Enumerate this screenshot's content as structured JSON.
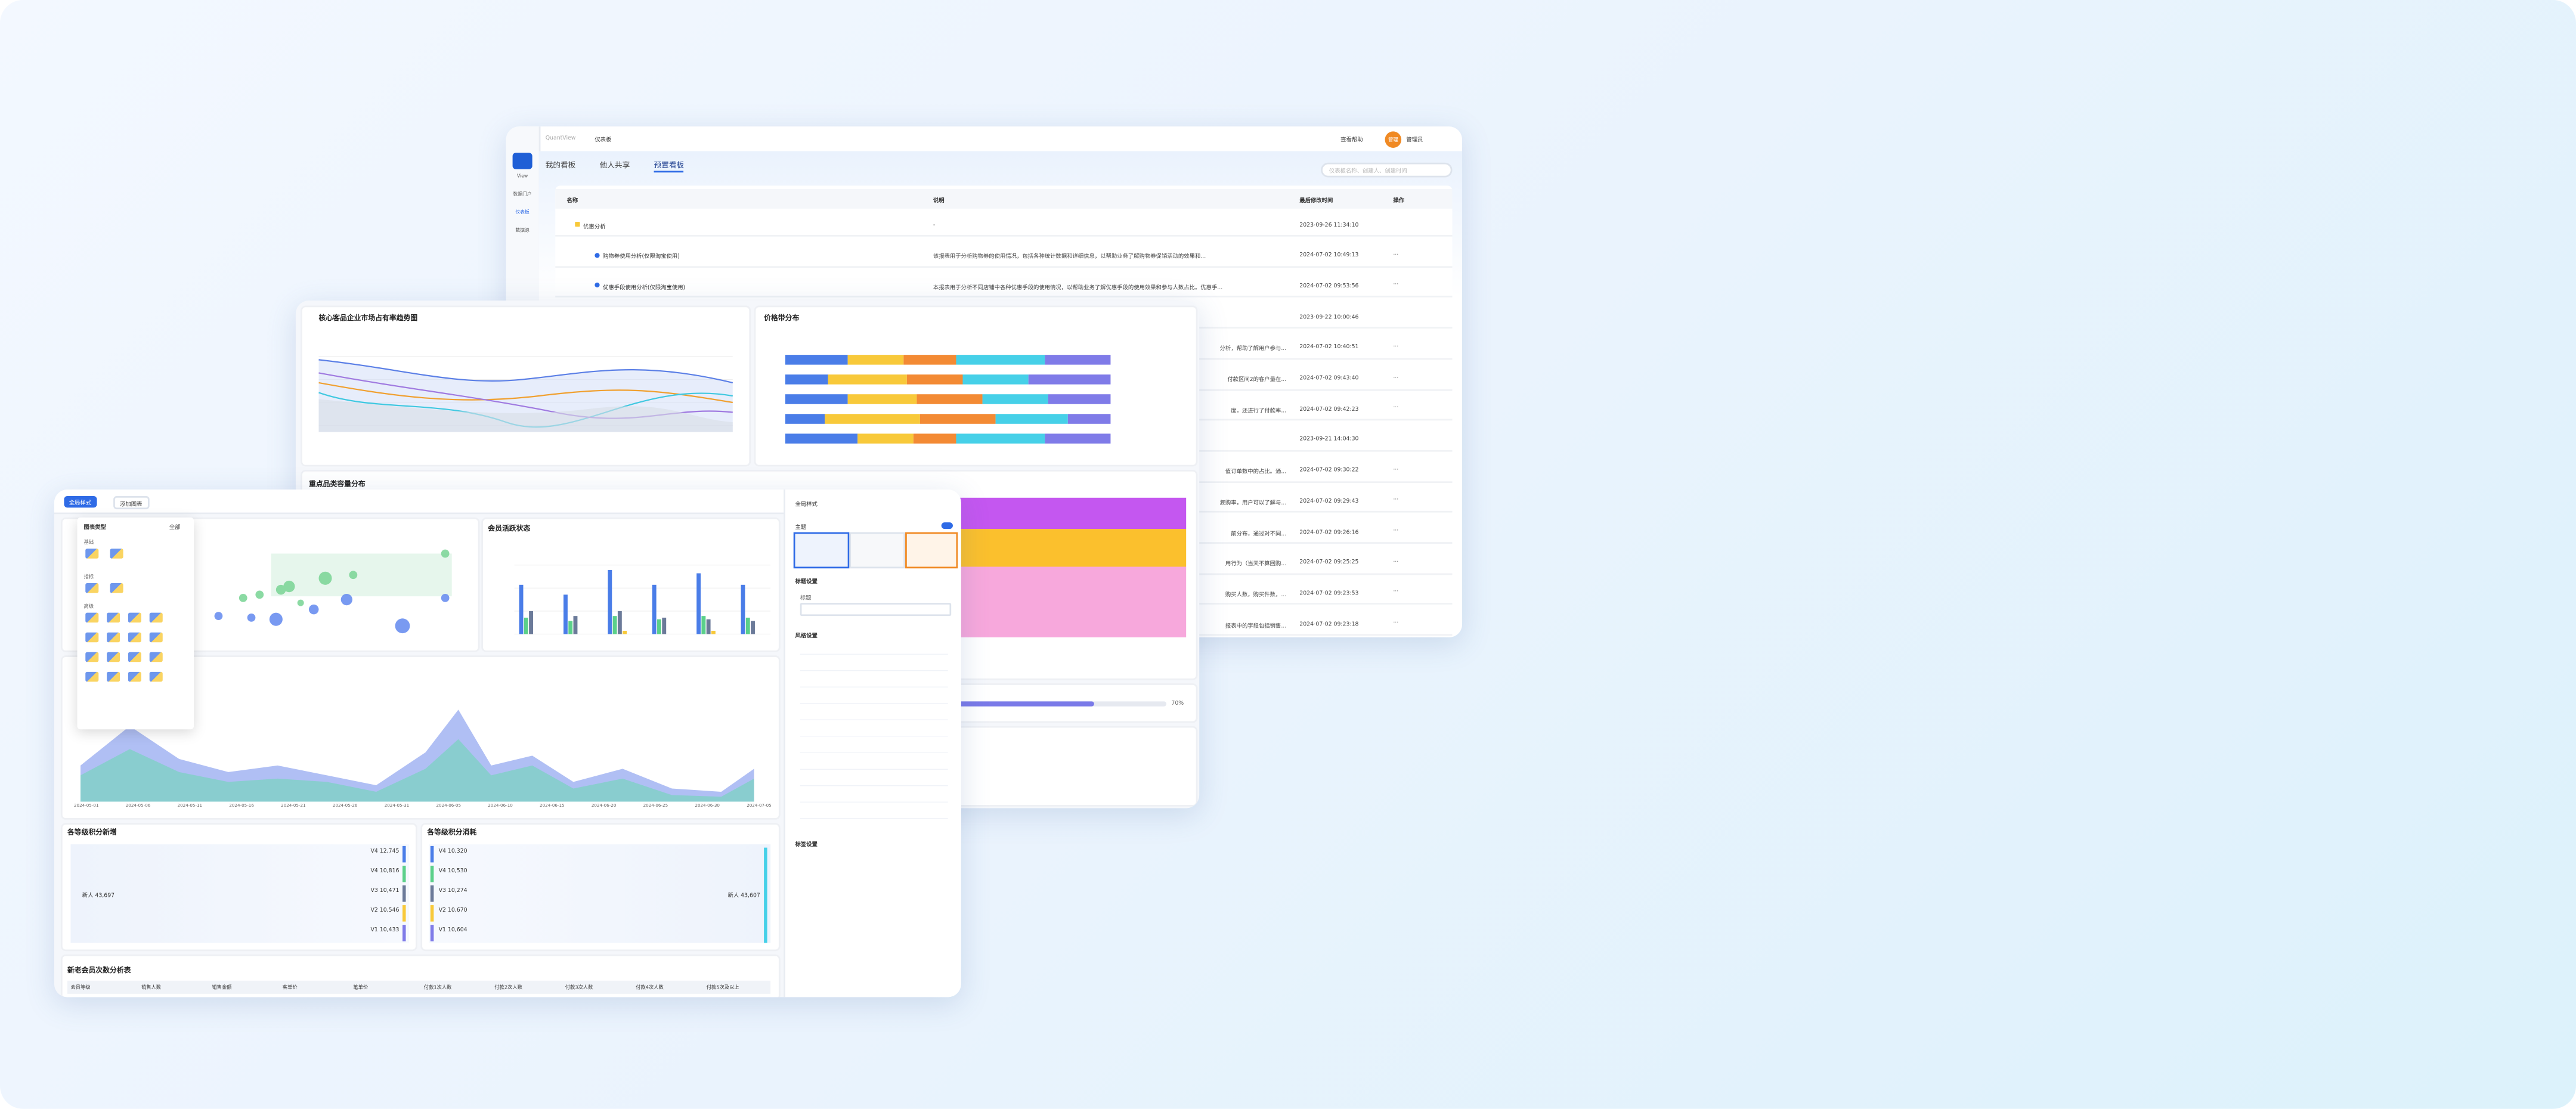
{
  "back": {
    "breadcrumb_root": "QuantView",
    "breadcrumb": "仪表板",
    "help": "查看帮助",
    "avatar": "管理",
    "user": "管理员",
    "sidebar": [
      "View",
      "数据门户",
      "仪表板",
      "数据源"
    ],
    "tabs": [
      "我的看板",
      "他人共享",
      "预置看板"
    ],
    "search": "仪表板名称、创建人、创建时间",
    "columns": [
      "名称",
      "说明",
      "最后修改时间",
      "操作"
    ],
    "rows": [
      {
        "name": "优惠分析",
        "desc": "-",
        "time": "2023-09-26 11:34:10"
      },
      {
        "name": "购物券使用分析(仅限淘宝使用)",
        "desc": "该报表用于分析购物券的使用情况，包括各种统计数据和详细信息，以帮助业务了解购物券促销活动的效果和...",
        "time": "2024-07-02 10:49:13",
        "action": "···"
      },
      {
        "name": "优惠手段使用分析(仅限淘宝使用)",
        "desc": "本报表用于分析不同店铺中各种优惠手段的使用情况，以帮助业务了解优惠手段的使用效果和参与人数占比。优惠手...",
        "time": "2024-07-02 09:53:56",
        "action": "···"
      },
      {
        "time": "2023-09-22 10:00:46"
      },
      {
        "desc_tail": "分析，帮助了解用户参与...",
        "time": "2024-07-02 10:40:51",
        "action": "···"
      },
      {
        "desc_tail": "付款区间2的客户量在...",
        "time": "2024-07-02 09:43:40",
        "action": "···"
      },
      {
        "desc_tail": "度，还进行了付款率...",
        "time": "2024-07-02 09:42:23",
        "action": "···"
      },
      {
        "time": "2023-09-21 14:04:30"
      },
      {
        "desc_tail": "值订单数中的占比。通...",
        "time": "2024-07-02 09:30:22",
        "action": "···"
      },
      {
        "desc_tail": "复购率，用户可以了解与...",
        "time": "2024-07-02 09:29:43",
        "action": "···"
      },
      {
        "desc_tail": "前分布，通过对不同...",
        "time": "2024-07-02 09:26:16",
        "action": "···"
      },
      {
        "desc_tail": "用行为（当天不算回购...",
        "time": "2024-07-02 09:25:25",
        "action": "···"
      },
      {
        "desc_tail": "购买人数，购买件数，...",
        "time": "2024-07-02 09:23:53",
        "action": "···"
      },
      {
        "desc_tail": "报表中的字段包括销售...",
        "time": "2024-07-02 09:23:18",
        "action": "···"
      }
    ]
  },
  "middle": {
    "chart1_title": "核心客品企业市场占有率趋势图",
    "chart2_title": "价格带分布",
    "chart3_title": "重点品类容量分布",
    "progress_label": "70%"
  },
  "front": {
    "toolbar": [
      "全局样式",
      "添加图表"
    ],
    "popup": {
      "title": "图表类型",
      "filter": "全部",
      "groups": [
        "基础",
        "指标",
        "高级"
      ]
    },
    "chart_titles": [
      "会员活跃状态",
      "各等级积分新增",
      "各等级积分消耗",
      "新老会员次数分析表"
    ],
    "funnel_left": [
      "V4 12,745",
      "V4 10,816",
      "V3 10,471",
      "V2 10,546",
      "V1 10,433"
    ],
    "funnel_left_total": "新人 43,697",
    "funnel_right": [
      "V4 10,320",
      "V4 10,530",
      "V3 10,274",
      "V2 10,670",
      "V1 10,604"
    ],
    "funnel_right_total": "新人 43,607",
    "table_columns": [
      "会员等级",
      "销售人数",
      "销售金额",
      "客单价",
      "笔单价",
      "付款1次人数",
      "付款2次人数",
      "付款3次人数",
      "付款4次人数",
      "付款5次及以上"
    ],
    "area_dates": [
      "2024-05-01",
      "2024-05-06",
      "2024-05-11",
      "2024-05-16",
      "2024-05-21",
      "2024-05-26",
      "2024-05-31",
      "2024-06-05",
      "2024-06-10",
      "2024-06-15",
      "2024-06-20",
      "2024-06-25",
      "2024-06-30",
      "2024-07-05"
    ],
    "panel": {
      "title": "全局样式",
      "theme": "主题",
      "sections": [
        "标题设置",
        "风格设置",
        "标签设置"
      ],
      "title_label": "标题"
    }
  }
}
